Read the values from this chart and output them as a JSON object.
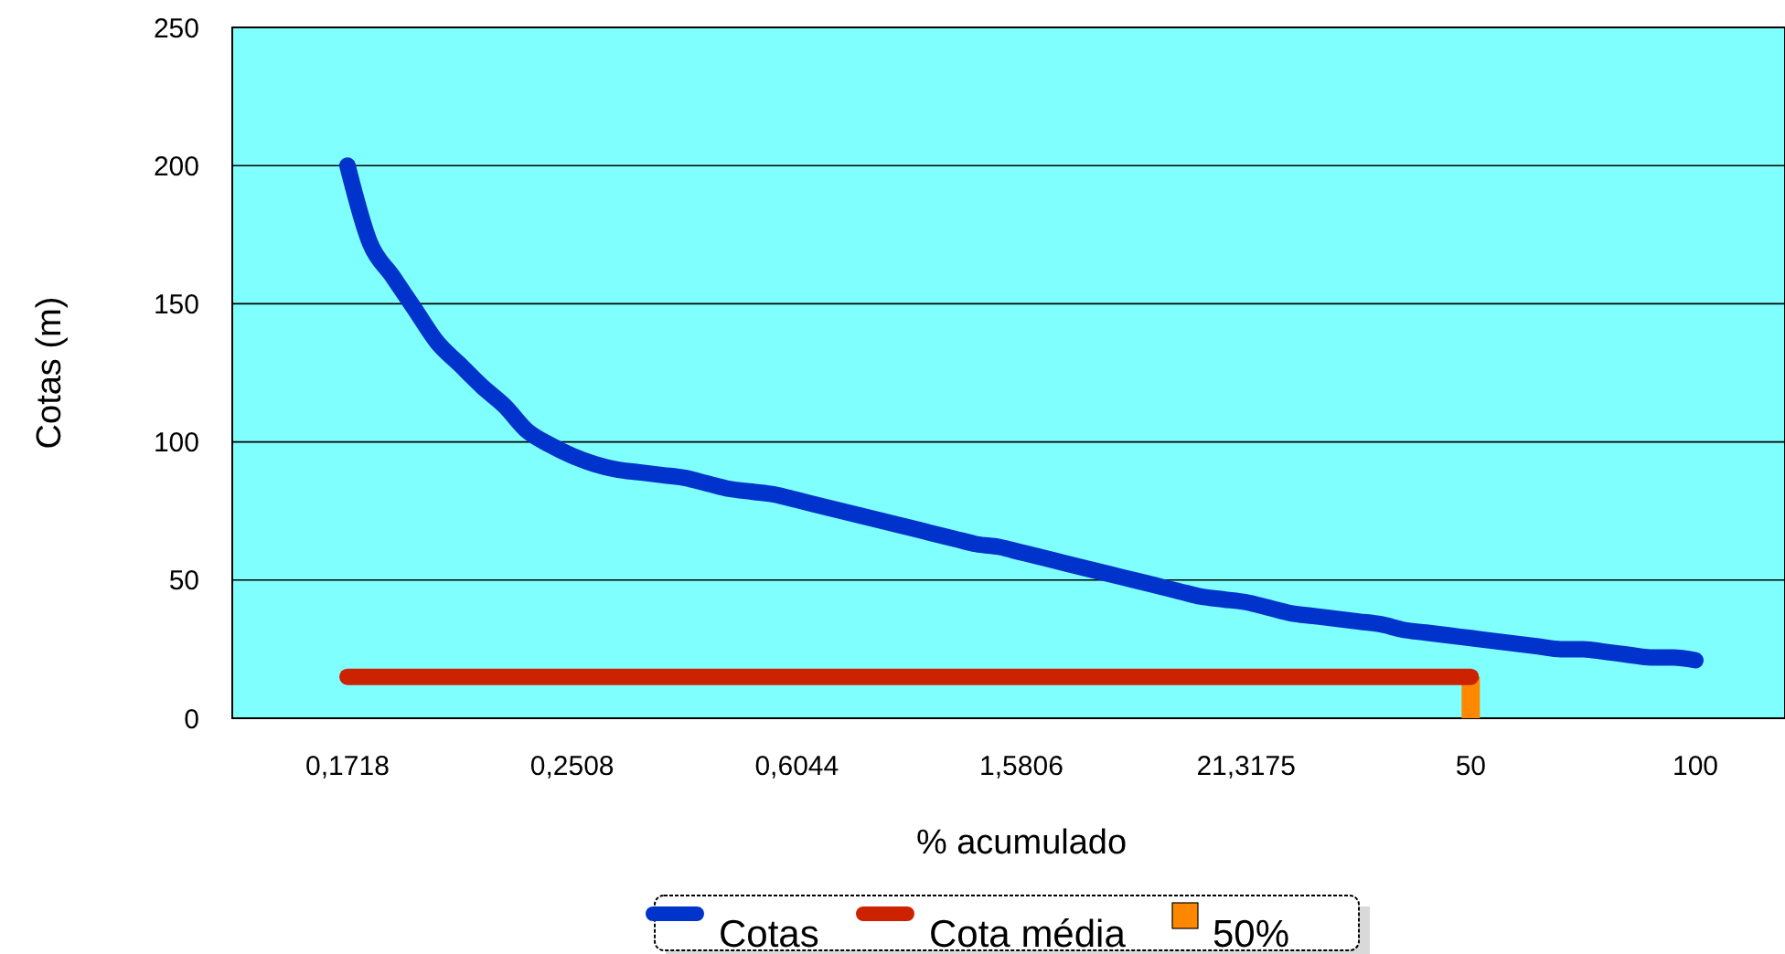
{
  "chart_data": {
    "type": "line",
    "xlabel": "% acumulado",
    "ylabel": "Cotas (m)",
    "categories": [
      "0,1718",
      null,
      null,
      null,
      null,
      null,
      null,
      null,
      null,
      null,
      "0,2508",
      null,
      null,
      null,
      null,
      null,
      null,
      null,
      null,
      null,
      "0,6044",
      null,
      null,
      null,
      null,
      null,
      null,
      null,
      null,
      null,
      "1,5806",
      null,
      null,
      null,
      null,
      null,
      null,
      null,
      null,
      null,
      "21,3175",
      null,
      null,
      null,
      null,
      null,
      null,
      null,
      null,
      null,
      "50",
      null,
      null,
      null,
      null,
      null,
      null,
      null,
      null,
      null,
      "100"
    ],
    "series": [
      {
        "name": "Cotas",
        "color": "#0033cc",
        "values": [
          200,
          172,
          160,
          148,
          136,
          128,
          120,
          113,
          104,
          99,
          95,
          92,
          90,
          89,
          88,
          87,
          85,
          83,
          82,
          81,
          79,
          77,
          75,
          73,
          71,
          69,
          67,
          65,
          63,
          62,
          60,
          58,
          56,
          54,
          52,
          50,
          48,
          46,
          44,
          43,
          42,
          40,
          38,
          37,
          36,
          35,
          34,
          32,
          31,
          30,
          29,
          28,
          27,
          26,
          25,
          25,
          24,
          23,
          22,
          22,
          21
        ]
      },
      {
        "name": "Cota média",
        "color": "#cc2200",
        "values": [
          15,
          15,
          15,
          15,
          15,
          15,
          15,
          15,
          15,
          15,
          15,
          15,
          15,
          15,
          15,
          15,
          15,
          15,
          15,
          15,
          15,
          15,
          15,
          15,
          15,
          15,
          15,
          15,
          15,
          15,
          15,
          15,
          15,
          15,
          15,
          15,
          15,
          15,
          15,
          15,
          15,
          15,
          15,
          15,
          15,
          15,
          15,
          15,
          15,
          15,
          15,
          null,
          null,
          null,
          null,
          null,
          null,
          null,
          null,
          null,
          null
        ]
      },
      {
        "name": "50%",
        "type": "bar",
        "color": "#ff8800",
        "values": [
          null,
          null,
          null,
          null,
          null,
          null,
          null,
          null,
          null,
          null,
          null,
          null,
          null,
          null,
          null,
          null,
          null,
          null,
          null,
          null,
          null,
          null,
          null,
          null,
          null,
          null,
          null,
          null,
          null,
          null,
          null,
          null,
          null,
          null,
          null,
          null,
          null,
          null,
          null,
          null,
          null,
          null,
          null,
          null,
          null,
          null,
          null,
          null,
          null,
          null,
          15,
          null,
          null,
          null,
          null,
          null,
          null,
          null,
          null,
          null,
          null
        ]
      }
    ],
    "ylim": [
      0,
      250
    ],
    "yticks": [
      0,
      50,
      100,
      150,
      200,
      250
    ],
    "grid": "y",
    "legend": "bottom",
    "line_style": "solid"
  }
}
